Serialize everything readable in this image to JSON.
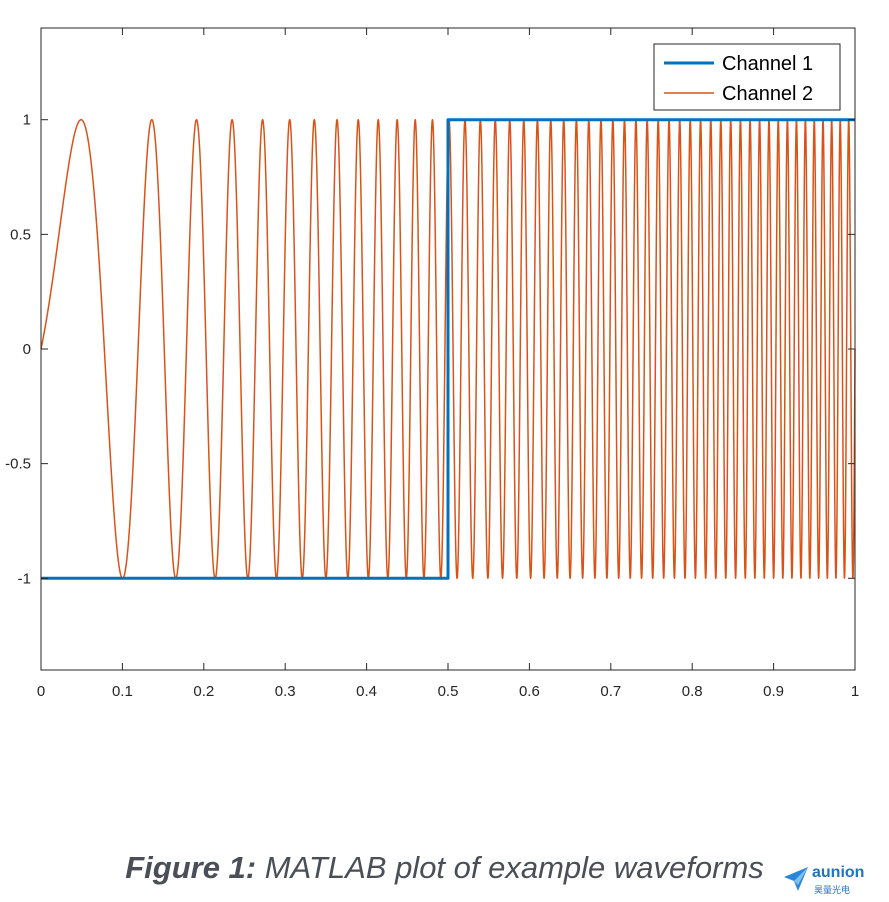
{
  "chart_data": {
    "type": "line",
    "xlim": [
      0,
      1
    ],
    "ylim": [
      -1.4,
      1.4
    ],
    "x_ticks": [
      0,
      0.1,
      0.2,
      0.3,
      0.4,
      0.5,
      0.6,
      0.7,
      0.8,
      0.9,
      1
    ],
    "x_tick_labels": [
      "0",
      "0.1",
      "0.2",
      "0.3",
      "0.4",
      "0.5",
      "0.6",
      "0.7",
      "0.8",
      "0.9",
      "1"
    ],
    "y_ticks": [
      -1,
      -0.5,
      0,
      0.5,
      1
    ],
    "y_tick_labels": [
      "-1",
      "-0.5",
      "0",
      "0.5",
      "1"
    ],
    "grid": false,
    "legend_position": "top-right",
    "series": [
      {
        "name": "Channel 1",
        "color": "#0072BD",
        "kind": "square",
        "x": [
          0,
          0.5,
          0.5,
          1
        ],
        "y": [
          -1,
          -1,
          1,
          1
        ]
      },
      {
        "name": "Channel 2",
        "color": "#D95319",
        "kind": "chirp",
        "formula": "sin(2*pi*f(t)*t)",
        "f_start_hz": 2.75,
        "f_end_hz": 50,
        "x_range": [
          0,
          1
        ]
      }
    ]
  },
  "caption": {
    "bold": "Figure 1:",
    "rest": " MATLAB plot of example waveforms"
  },
  "watermark": {
    "brand": "aunion",
    "sub": "昊量光电",
    "icon": "paper-plane-icon"
  }
}
